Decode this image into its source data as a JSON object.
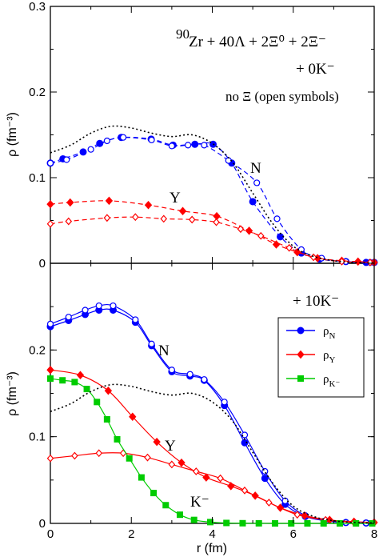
{
  "chart_data": [
    {
      "type": "line",
      "panel": "top",
      "xlim": [
        0,
        8
      ],
      "ylim": [
        0,
        0.3
      ],
      "xticks": [
        0,
        2,
        4,
        6,
        8
      ],
      "yticks": [
        "0",
        "0.1",
        "0.2",
        "0.3"
      ],
      "ytick_values": [
        0,
        0.1,
        0.2,
        0.3
      ],
      "xlabel": "",
      "ylabel": "ρ (fm⁻³)",
      "annotations": {
        "title_line1_sup": "90",
        "title_line1": "Zr + 40Λ + 2Ξ⁰ + 2Ξ⁻",
        "title_line2": "+  0K⁻",
        "note": "no Ξ  (open symbols)",
        "label_N": "N",
        "label_Y": "Y"
      },
      "series": [
        {
          "name": "ρN",
          "color": "#0000ff",
          "marker": "circle-filled",
          "dash": "6,4",
          "x": [
            0,
            0.31,
            0.81,
            1.22,
            1.75,
            2.49,
            3.03,
            3.57,
            4.02,
            4.48,
            5.0,
            5.68,
            6.2,
            6.65,
            7.3,
            7.8,
            8.0
          ],
          "y": [
            0.117,
            0.122,
            0.13,
            0.14,
            0.147,
            0.145,
            0.138,
            0.139,
            0.139,
            0.117,
            0.072,
            0.031,
            0.012,
            0.005,
            0.002,
            0.001,
            0.001
          ]
        },
        {
          "name": "ρN (no Ξ)",
          "color": "#0000ff",
          "marker": "circle-open",
          "dash": "6,4",
          "x": [
            0,
            0.4,
            1.0,
            1.4,
            1.8,
            2.5,
            3.0,
            3.4,
            3.8,
            4.4,
            5.1,
            5.6,
            6.2,
            6.7,
            7.3,
            7.9
          ],
          "y": [
            0.117,
            0.121,
            0.133,
            0.143,
            0.147,
            0.144,
            0.137,
            0.138,
            0.138,
            0.12,
            0.094,
            0.052,
            0.016,
            0.006,
            0.002,
            0.001
          ]
        },
        {
          "name": "ρY",
          "color": "#ff0000",
          "marker": "diamond-filled",
          "dash": "6,4",
          "x": [
            0,
            0.49,
            1.45,
            2.42,
            3.27,
            4.11,
            4.91,
            5.58,
            6.1,
            6.6,
            7.2,
            7.6,
            8.0
          ],
          "y": [
            0.069,
            0.071,
            0.073,
            0.068,
            0.061,
            0.055,
            0.038,
            0.022,
            0.013,
            0.006,
            0.003,
            0.002,
            0.001
          ]
        },
        {
          "name": "ρY (no Ξ)",
          "color": "#ff0000",
          "marker": "diamond-open",
          "dash": "6,4",
          "x": [
            0,
            0.45,
            1.4,
            2.1,
            2.8,
            3.5,
            4.1,
            4.7,
            5.2,
            5.9,
            6.5,
            7.2,
            7.9
          ],
          "y": [
            0.046,
            0.049,
            0.053,
            0.054,
            0.052,
            0.051,
            0.048,
            0.04,
            0.032,
            0.018,
            0.007,
            0.002,
            0.001
          ]
        },
        {
          "name": "ρN reference (dotted)",
          "color": "#000000",
          "marker": "none",
          "dash": "2,3",
          "x": [
            0,
            0.5,
            1,
            1.5,
            2,
            2.5,
            3,
            3.5,
            4,
            4.5,
            5,
            5.5,
            6,
            6.5,
            7,
            7.5,
            8
          ],
          "y": [
            0.129,
            0.138,
            0.152,
            0.16,
            0.158,
            0.152,
            0.148,
            0.15,
            0.14,
            0.118,
            0.082,
            0.046,
            0.02,
            0.008,
            0.003,
            0.001,
            0.0005
          ]
        }
      ]
    },
    {
      "type": "line",
      "panel": "bottom",
      "xlim": [
        0,
        8
      ],
      "ylim": [
        0,
        0.3
      ],
      "xticks": [
        "0",
        "2",
        "4",
        "6",
        "8"
      ],
      "xtick_values": [
        0,
        2,
        4,
        6,
        8
      ],
      "yticks": [
        "0",
        "0.1",
        "0.2"
      ],
      "ytick_values": [
        0,
        0.1,
        0.2
      ],
      "xlabel": "r (fm)",
      "ylabel": "ρ (fm⁻³)",
      "annotations": {
        "title": "+ 10K⁻",
        "label_N": "N",
        "label_Y": "Y",
        "label_K": "K⁻"
      },
      "legend": {
        "position": "right",
        "entries": [
          {
            "label": "ρ",
            "sub": "N",
            "color": "#0000ff",
            "marker": "circle-filled"
          },
          {
            "label": "ρ",
            "sub": "Y",
            "color": "#ff0000",
            "marker": "diamond-filled"
          },
          {
            "label": "ρ",
            "sub": "K⁻",
            "color": "#00cc00",
            "marker": "square-filled"
          }
        ]
      },
      "series": [
        {
          "name": "ρN",
          "color": "#0000ff",
          "marker": "circle-filled",
          "dash": "",
          "x": [
            0,
            0.45,
            0.86,
            1.2,
            1.55,
            2.1,
            2.5,
            3.0,
            3.45,
            3.8,
            4.3,
            4.8,
            5.3,
            5.8,
            6.3,
            6.8,
            7.3,
            7.8
          ],
          "y": [
            0.227,
            0.234,
            0.241,
            0.246,
            0.246,
            0.232,
            0.205,
            0.175,
            0.17,
            0.165,
            0.136,
            0.093,
            0.052,
            0.022,
            0.008,
            0.003,
            0.001,
            0.0005
          ]
        },
        {
          "name": "ρN (no Ξ)",
          "color": "#0000ff",
          "marker": "circle-open",
          "dash": "",
          "x": [
            0,
            0.45,
            0.86,
            1.2,
            1.55,
            2.1,
            2.5,
            3.0,
            3.45,
            3.8,
            4.3,
            4.8,
            5.3,
            5.8,
            6.3,
            6.8,
            7.3,
            7.8
          ],
          "y": [
            0.23,
            0.238,
            0.246,
            0.251,
            0.251,
            0.235,
            0.207,
            0.177,
            0.172,
            0.166,
            0.14,
            0.102,
            0.06,
            0.026,
            0.009,
            0.003,
            0.001,
            0.0005
          ]
        },
        {
          "name": "ρY",
          "color": "#ff0000",
          "marker": "diamond-filled",
          "dash": "",
          "x": [
            0,
            0.74,
            1.43,
            2.03,
            2.63,
            3.24,
            3.85,
            4.46,
            5.06,
            5.68,
            6.28,
            6.9,
            7.5,
            8.0
          ],
          "y": [
            0.177,
            0.171,
            0.153,
            0.123,
            0.094,
            0.07,
            0.053,
            0.043,
            0.032,
            0.018,
            0.009,
            0.004,
            0.002,
            0.001
          ]
        },
        {
          "name": "ρY (no Ξ)",
          "color": "#ff0000",
          "marker": "diamond-open",
          "dash": "",
          "x": [
            0,
            0.6,
            1.2,
            1.8,
            2.4,
            3.0,
            3.6,
            4.2,
            4.8,
            5.4,
            6.1,
            6.8,
            7.5
          ],
          "y": [
            0.075,
            0.078,
            0.081,
            0.081,
            0.076,
            0.068,
            0.06,
            0.052,
            0.038,
            0.024,
            0.01,
            0.004,
            0.001
          ]
        },
        {
          "name": "ρK⁻",
          "color": "#00cc00",
          "marker": "square-filled",
          "dash": "",
          "x": [
            0,
            0.3,
            0.6,
            0.9,
            1.15,
            1.4,
            1.65,
            1.95,
            2.25,
            2.55,
            2.85,
            3.2,
            3.55,
            3.95,
            4.35,
            4.75,
            5.15,
            5.55,
            5.95,
            6.35,
            6.75,
            7.15,
            7.55,
            7.95
          ],
          "y": [
            0.167,
            0.165,
            0.163,
            0.155,
            0.14,
            0.12,
            0.097,
            0.075,
            0.053,
            0.035,
            0.021,
            0.01,
            0.004,
            0.0015,
            0.0005,
            0.0002,
            0.0001,
            0,
            0,
            0,
            0,
            0,
            0,
            0
          ]
        },
        {
          "name": "ρN reference (dotted)",
          "color": "#000000",
          "marker": "none",
          "dash": "2,3",
          "x": [
            0,
            0.5,
            1,
            1.5,
            2,
            2.5,
            3,
            3.5,
            4,
            4.5,
            5,
            5.5,
            6,
            6.5,
            7,
            7.5,
            8
          ],
          "y": [
            0.129,
            0.138,
            0.152,
            0.16,
            0.158,
            0.152,
            0.148,
            0.15,
            0.14,
            0.118,
            0.082,
            0.046,
            0.02,
            0.008,
            0.003,
            0.001,
            0.0005
          ]
        }
      ]
    }
  ]
}
